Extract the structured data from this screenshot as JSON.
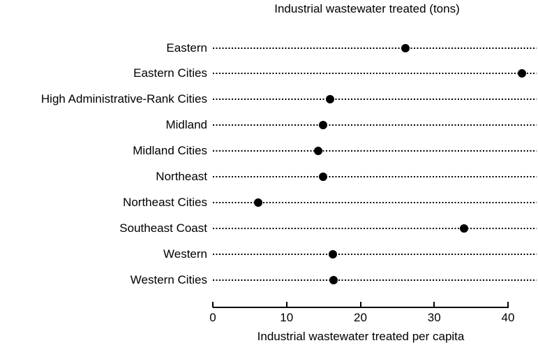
{
  "page": {
    "background_color": "#ffffff",
    "foreground_color": "#000000"
  },
  "chart_data": {
    "type": "scatter",
    "subtype": "dot-plot",
    "title": "Industrial wastewater treated (tons)",
    "xlabel": "Industrial wastewater treated per capita",
    "ylabel": "",
    "categories": [
      "Eastern",
      "Eastern Cities",
      "High Administrative-Rank Cities",
      "Midland",
      "Midland Cities",
      "Northeast",
      "Northeast Cities",
      "Southeast Coast",
      "Western",
      "Western Cities"
    ],
    "values": [
      26.1,
      41.9,
      15.9,
      14.9,
      14.3,
      14.9,
      6.1,
      34.0,
      16.3,
      16.4
    ],
    "xticks": [
      0,
      10,
      20,
      30,
      40
    ],
    "xlim": [
      0,
      44
    ],
    "legend_position": "none",
    "grid": "dotted horizontal guide line per category",
    "marker_color": "#000000"
  }
}
